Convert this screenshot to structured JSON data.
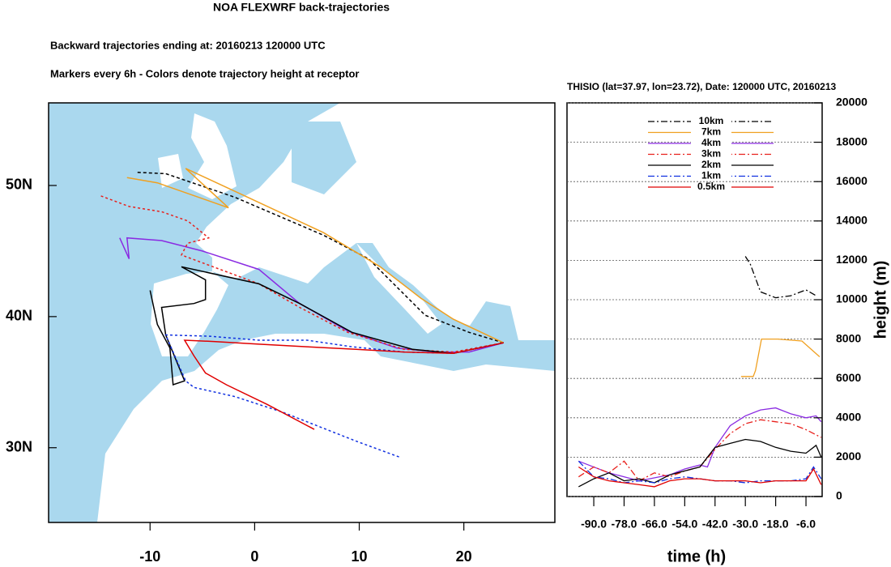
{
  "chart_data": [
    {
      "type": "line",
      "title": "NOA FLEXWRF back-trajectories",
      "subtitle": "Backward trajectories ending at: 20160213  120000 UTC",
      "annotation": "Markers every 6h - Colors denote trajectory height at receptor",
      "xlim": [
        -19.7,
        28.7
      ],
      "ylim": [
        24.3,
        56.3
      ],
      "xticks": [
        -10,
        0,
        10,
        20
      ],
      "yticks": [
        {
          "value": 30,
          "label": "30N"
        },
        {
          "value": 40,
          "label": "40N"
        },
        {
          "value": 50,
          "label": "50N"
        }
      ],
      "series": [
        {
          "color": "#000000",
          "dash": "dash",
          "x": [
            -11.2,
            -8.5,
            -1.9,
            6.6,
            10.9,
            16.3,
            20.5,
            23.8
          ],
          "y": [
            51.0,
            50.9,
            49.1,
            46.2,
            44.4,
            40.1,
            38.8,
            38.0
          ]
        },
        {
          "color": "#f0a020",
          "dash": "solid",
          "x": [
            -12.2,
            -9.3,
            -2.5,
            -6.6,
            -1.2,
            6.6,
            12.0,
            15.9,
            19.0,
            23.8
          ],
          "y": [
            50.6,
            50.2,
            48.3,
            51.3,
            49.3,
            46.4,
            43.8,
            41.4,
            39.8,
            38.0
          ]
        },
        {
          "color": "#8a2be2",
          "dash": "solid",
          "x": [
            -12.9,
            -12.0,
            -12.2,
            -8.9,
            -5.0,
            0.4,
            4.3,
            8.9,
            13.6,
            17.4,
            20.5,
            23.8
          ],
          "y": [
            46.0,
            44.4,
            46.0,
            45.8,
            45.0,
            43.6,
            41.0,
            38.9,
            37.6,
            37.3,
            37.3,
            38.0
          ]
        },
        {
          "color": "#e8201c",
          "dash": "dot",
          "x": [
            -14.7,
            -12.0,
            -8.9,
            -6.4,
            -4.4,
            -6.4,
            -7.0,
            0.4,
            4.3,
            8.9,
            14.3,
            19.0,
            23.8
          ],
          "y": [
            49.2,
            48.4,
            48.0,
            47.3,
            46.0,
            45.6,
            44.7,
            42.5,
            40.7,
            38.8,
            37.5,
            37.3,
            38.0
          ]
        },
        {
          "color": "#000000",
          "dash": "solid",
          "x": [
            -10.0,
            -9.3,
            -8.1,
            -7.8,
            -6.7,
            -8.5,
            -8.9,
            -5.8,
            -4.7,
            -4.7,
            -7.0,
            0.4,
            4.3,
            9.3,
            15.1,
            19.0,
            23.8
          ],
          "y": [
            42.0,
            39.4,
            37.6,
            34.8,
            35.1,
            38.6,
            40.7,
            41.0,
            41.3,
            42.8,
            43.8,
            42.5,
            41.0,
            38.8,
            37.5,
            37.2,
            38.0
          ]
        },
        {
          "color": "#1030e0",
          "dash": "dot",
          "x": [
            13.8,
            9.7,
            2.7,
            -1.9,
            -5.8,
            -6.6,
            -8.5,
            -4.3,
            0.4,
            5.0,
            9.3,
            14.3,
            19.0,
            23.8
          ],
          "y": [
            29.3,
            30.5,
            32.7,
            33.9,
            34.6,
            35.1,
            38.6,
            38.5,
            38.2,
            38.2,
            37.7,
            37.3,
            37.2,
            38.0
          ]
        },
        {
          "color": "#e00000",
          "dash": "solid",
          "x": [
            5.7,
            1.2,
            -2.7,
            -4.7,
            -5.8,
            -6.7,
            -3.9,
            0.4,
            5.0,
            9.7,
            14.3,
            19.0,
            23.8
          ],
          "y": [
            31.4,
            33.3,
            34.8,
            35.7,
            37.0,
            38.2,
            38.1,
            37.9,
            37.7,
            37.5,
            37.3,
            37.2,
            38.0
          ]
        }
      ]
    },
    {
      "type": "line",
      "title": "THISIO (lat=37.97,  lon=23.72), Date: 120000 UTC, 20160213",
      "xlabel": "time (h)",
      "ylabel": "height (m)",
      "xlim": [
        -100.6,
        0.4
      ],
      "ylim": [
        0,
        20000
      ],
      "xticks": [
        {
          "value": -90,
          "label": "-90.0"
        },
        {
          "value": -78,
          "label": "-78.0"
        },
        {
          "value": -66,
          "label": "-66.0"
        },
        {
          "value": -54,
          "label": "-54.0"
        },
        {
          "value": -42,
          "label": "-42.0"
        },
        {
          "value": -30,
          "label": "-30.0"
        },
        {
          "value": -18,
          "label": "-18.0"
        },
        {
          "value": -6,
          "label": "-6.0"
        }
      ],
      "yticks": [
        0,
        2000,
        4000,
        6000,
        8000,
        10000,
        12000,
        14000,
        16000,
        18000,
        20000
      ],
      "grid": true,
      "series": [
        {
          "name": "10km",
          "color": "#000000",
          "dash": "dashdot",
          "x": [
            -30,
            -28,
            -24,
            -18,
            -12,
            -6,
            -2
          ],
          "y": [
            12200,
            11800,
            10400,
            10100,
            10200,
            10500,
            10200
          ]
        },
        {
          "name": "7km",
          "color": "#f0a020",
          "dash": "solid",
          "x": [
            -31.7,
            -26.9,
            -26,
            -23.6,
            -17.2,
            -7.6,
            -0.6
          ],
          "y": [
            6100,
            6100,
            6400,
            8000,
            8000,
            7900,
            7100
          ]
        },
        {
          "name": "4km",
          "color": "#8a2be2",
          "dash": "solid",
          "x": [
            -96,
            -84,
            -72,
            -60,
            -54,
            -48,
            -45,
            -42,
            -36,
            -30,
            -24,
            -18,
            -12,
            -6,
            -2,
            0
          ],
          "y": [
            1800,
            1200,
            800,
            1100,
            1400,
            1600,
            1500,
            2500,
            3600,
            4100,
            4400,
            4500,
            4200,
            4000,
            4100,
            3800
          ]
        },
        {
          "name": "3km",
          "color": "#e8201c",
          "dash": "dashdot",
          "x": [
            -96,
            -90,
            -84,
            -78,
            -72,
            -66,
            -60,
            -54,
            -48,
            -42,
            -36,
            -30,
            -24,
            -18,
            -12,
            -6,
            0
          ],
          "y": [
            1000,
            1500,
            1200,
            1800,
            800,
            1200,
            1000,
            1300,
            1500,
            2400,
            3200,
            3700,
            3900,
            3800,
            3700,
            3400,
            3000
          ]
        },
        {
          "name": "2km",
          "color": "#000000",
          "dash": "solid",
          "x": [
            -96,
            -90,
            -84,
            -78,
            -72,
            -66,
            -60,
            -54,
            -48,
            -42,
            -36,
            -30,
            -24,
            -18,
            -12,
            -6,
            -2,
            0
          ],
          "y": [
            500,
            900,
            1200,
            800,
            900,
            700,
            1100,
            1300,
            1500,
            2500,
            2700,
            2900,
            2800,
            2500,
            2300,
            2200,
            2600,
            2000
          ]
        },
        {
          "name": "1km",
          "color": "#1030e0",
          "dash": "dashdot",
          "x": [
            -96,
            -90,
            -84,
            -78,
            -72,
            -66,
            -60,
            -54,
            -48,
            -42,
            -36,
            -30,
            -24,
            -18,
            -12,
            -6,
            -3,
            0
          ],
          "y": [
            1800,
            1000,
            900,
            700,
            800,
            700,
            900,
            1000,
            900,
            800,
            800,
            700,
            800,
            800,
            800,
            900,
            1500,
            900
          ]
        },
        {
          "name": "0.5km",
          "color": "#e00000",
          "dash": "solid",
          "x": [
            -96,
            -90,
            -84,
            -78,
            -72,
            -66,
            -60,
            -54,
            -48,
            -42,
            -36,
            -30,
            -24,
            -18,
            -12,
            -6,
            -3,
            0
          ],
          "y": [
            1500,
            1000,
            800,
            700,
            600,
            500,
            800,
            900,
            900,
            800,
            800,
            800,
            700,
            800,
            800,
            800,
            1400,
            600
          ]
        }
      ]
    }
  ]
}
